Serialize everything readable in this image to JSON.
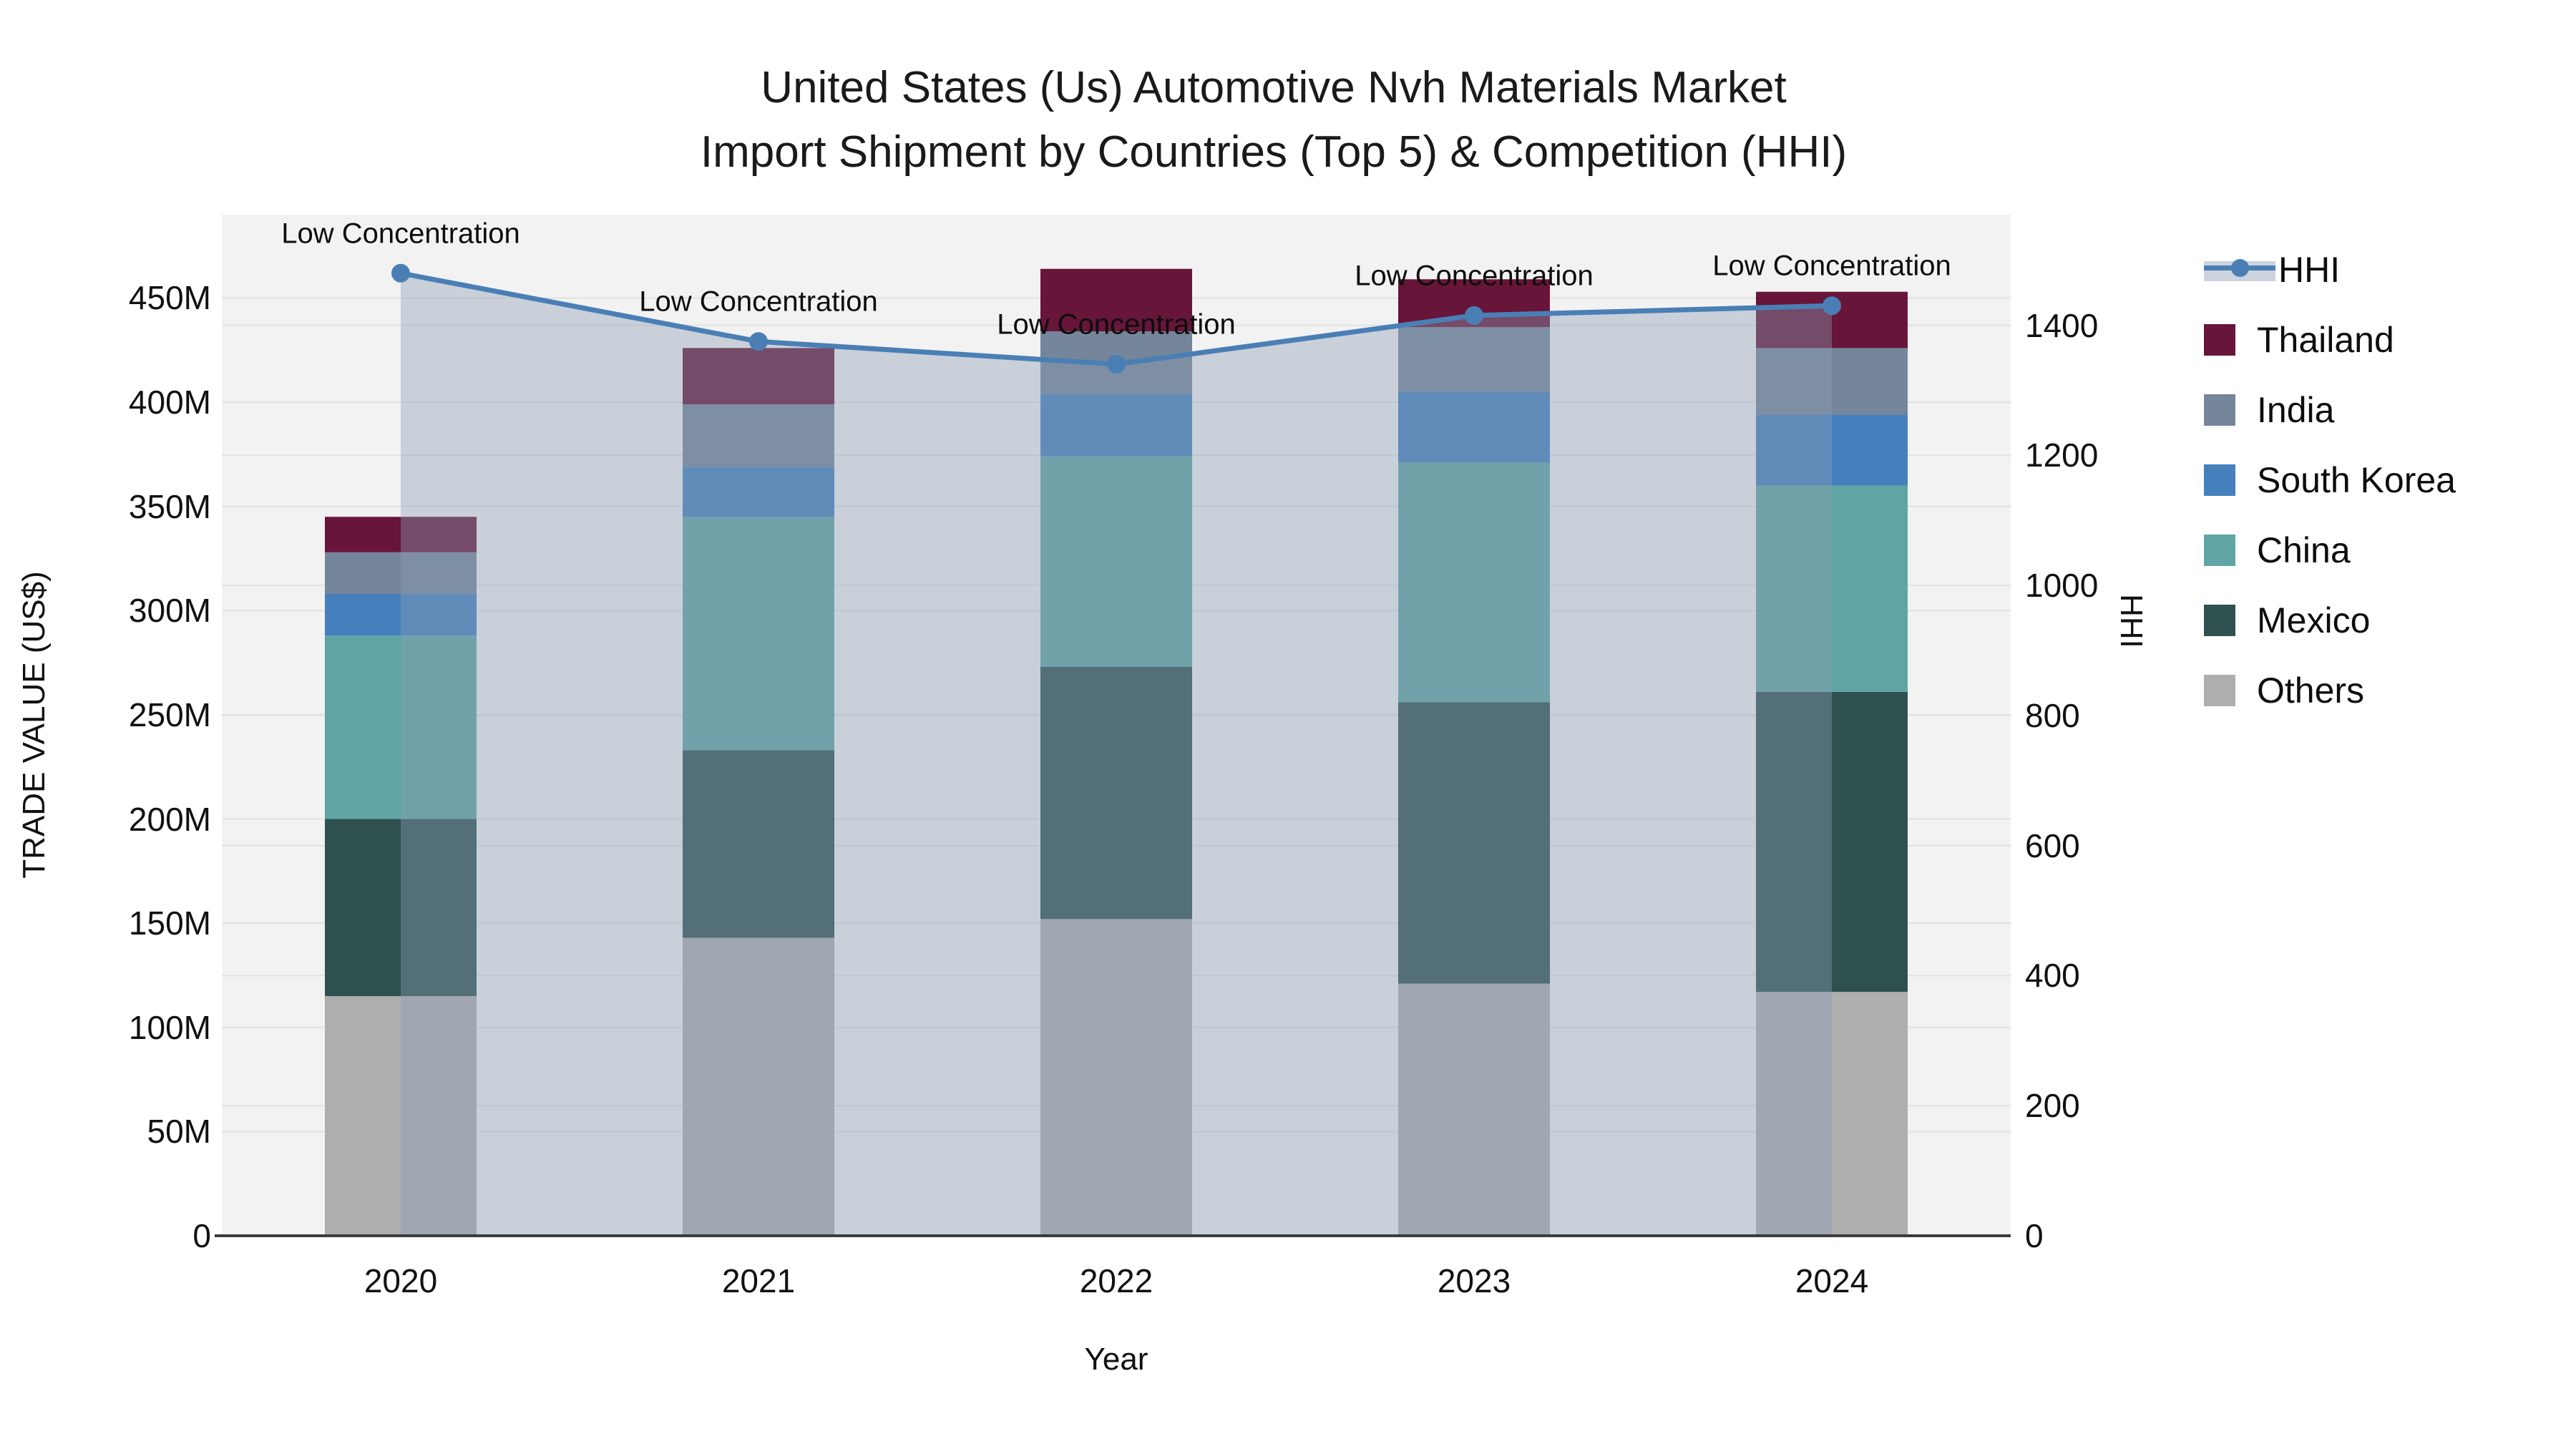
{
  "title": {
    "line1": "United States (Us) Automotive Nvh Materials Market",
    "line2": "Import Shipment by Countries (Top 5) & Competition (HHI)"
  },
  "chart_data": {
    "type": "bar+line",
    "categories": [
      "2020",
      "2021",
      "2022",
      "2023",
      "2024"
    ],
    "xlabel": "Year",
    "left_axis": {
      "title": "TRADE VALUE (US$)",
      "unit_suffix": "M",
      "tick_step": 50,
      "tick_max": 450,
      "axis_max": 490,
      "tick_labels": [
        "0",
        "50M",
        "100M",
        "150M",
        "200M",
        "250M",
        "300M",
        "350M",
        "400M",
        "450M"
      ]
    },
    "right_axis": {
      "title": "HHI",
      "tick_step": 200,
      "tick_max": 1400,
      "axis_max": 1570,
      "tick_labels": [
        "0",
        "200",
        "400",
        "600",
        "800",
        "1000",
        "1200",
        "1400"
      ]
    },
    "series": [
      {
        "name": "Others",
        "color": "#aeaeae",
        "values": [
          115,
          143,
          152,
          121,
          117
        ]
      },
      {
        "name": "Mexico",
        "color": "#2e5150",
        "values": [
          85,
          90,
          121,
          135,
          144
        ]
      },
      {
        "name": "China",
        "color": "#60a5a4",
        "values": [
          88,
          112,
          101,
          115,
          99
        ]
      },
      {
        "name": "South Korea",
        "color": "#4580bd",
        "values": [
          20,
          24,
          30,
          34,
          34
        ]
      },
      {
        "name": "India",
        "color": "#75859a",
        "values": [
          20,
          30,
          30,
          31,
          32
        ]
      },
      {
        "name": "Thailand",
        "color": "#671539",
        "values": [
          17,
          27,
          30,
          23,
          27
        ]
      }
    ],
    "totals": [
      345,
      426,
      464,
      459,
      453
    ],
    "line_series": {
      "name": "HHI",
      "color": "#4a7fb5",
      "fill_color": "rgba(141,157,181,0.40)",
      "values": [
        1480,
        1375,
        1340,
        1415,
        1430
      ],
      "annotation_label": "Low Concentration"
    },
    "legend_order": [
      "HHI",
      "Thailand",
      "India",
      "South Korea",
      "China",
      "Mexico",
      "Others"
    ],
    "layout_hints": {
      "plot_background": "#f2f2f2",
      "gridline_color": "#e2e2e2",
      "axisline_color": "#3b3b3b",
      "grid_on": true,
      "legend_position": "right"
    }
  }
}
